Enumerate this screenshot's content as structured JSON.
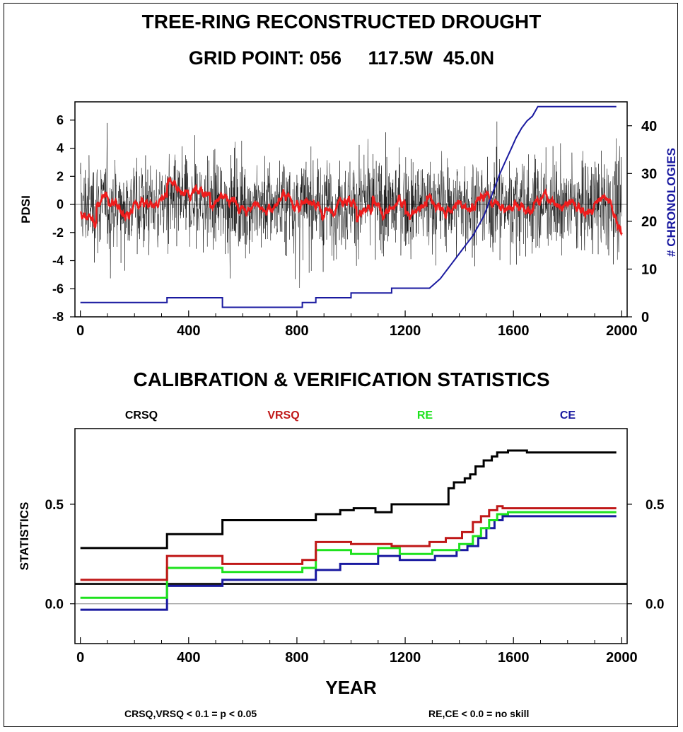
{
  "header": {
    "title": "TREE-RING RECONSTRUCTED DROUGHT",
    "subtitle": "GRID POINT: 056     117.5W  45.0N"
  },
  "stats_title": "CALIBRATION & VERIFICATION STATISTICS",
  "footnotes": {
    "left": "CRSQ,VRSQ < 0.1 = p < 0.05",
    "right": "RE,CE < 0.0 = no skill"
  },
  "chart_data": [
    {
      "type": "line",
      "ylabel": "PDSI",
      "y2label": "# CHRONOLOGIES",
      "xlim": [
        -20,
        2020
      ],
      "ylim": [
        -8,
        7.3
      ],
      "y2lim": [
        0,
        45
      ],
      "xticks": [
        0,
        400,
        800,
        1200,
        1600,
        2000
      ],
      "yticks": [
        6,
        4,
        2,
        0,
        -2,
        -4,
        -6,
        -8
      ],
      "y2ticks": [
        40,
        30,
        20,
        10,
        0
      ],
      "colors": {
        "annual": "#000000",
        "smoothed": "#ee1c1c",
        "chronologies": "#1a1aa0"
      },
      "series": [
        {
          "name": "# CHRONOLOGIES",
          "axis": "right",
          "x": [
            0,
            320,
            320,
            525,
            525,
            820,
            820,
            870,
            870,
            1000,
            1000,
            1150,
            1150,
            1290,
            1310,
            1330,
            1350,
            1370,
            1390,
            1410,
            1430,
            1450,
            1470,
            1490,
            1510,
            1530,
            1550,
            1570,
            1590,
            1610,
            1630,
            1650,
            1670,
            1690,
            1980
          ],
          "y": [
            3,
            3,
            4,
            4,
            2,
            2,
            3,
            3,
            4,
            4,
            5,
            5,
            6,
            6,
            7,
            8,
            9.5,
            11,
            12.5,
            14,
            15.5,
            17,
            19,
            21,
            24,
            27,
            30,
            32.5,
            35,
            37.5,
            39.5,
            41,
            42,
            44,
            44
          ]
        }
      ]
    },
    {
      "type": "line",
      "ylabel": "STATISTICS",
      "xlabel": "YEAR",
      "xlim": [
        -20,
        2020
      ],
      "ylim": [
        -0.2,
        0.88
      ],
      "xticks": [
        0,
        400,
        800,
        1200,
        1600,
        2000
      ],
      "yticks": [
        0.5,
        0.0
      ],
      "ytick_labels": [
        "0.5",
        "0.0"
      ],
      "reference_lines": [
        0.1
      ],
      "series": [
        {
          "name": "CRSQ",
          "color": "#000000",
          "x": [
            0,
            320,
            320,
            525,
            525,
            870,
            870,
            960,
            960,
            1010,
            1010,
            1090,
            1090,
            1150,
            1150,
            1360,
            1360,
            1380,
            1380,
            1420,
            1420,
            1440,
            1440,
            1460,
            1460,
            1490,
            1490,
            1520,
            1520,
            1540,
            1540,
            1580,
            1580,
            1650,
            1650,
            1680,
            1680,
            1980
          ],
          "y": [
            0.28,
            0.28,
            0.35,
            0.35,
            0.42,
            0.42,
            0.45,
            0.45,
            0.47,
            0.47,
            0.48,
            0.48,
            0.46,
            0.46,
            0.5,
            0.5,
            0.58,
            0.58,
            0.61,
            0.61,
            0.63,
            0.63,
            0.65,
            0.65,
            0.69,
            0.69,
            0.72,
            0.72,
            0.74,
            0.74,
            0.76,
            0.76,
            0.77,
            0.77,
            0.76,
            0.76,
            0.76,
            0.76
          ]
        },
        {
          "name": "VRSQ",
          "color": "#c01818",
          "x": [
            0,
            320,
            320,
            525,
            525,
            820,
            820,
            870,
            870,
            1000,
            1000,
            1150,
            1150,
            1290,
            1290,
            1350,
            1350,
            1410,
            1410,
            1450,
            1450,
            1480,
            1480,
            1510,
            1510,
            1540,
            1540,
            1560,
            1560,
            1980
          ],
          "y": [
            0.12,
            0.12,
            0.24,
            0.24,
            0.2,
            0.2,
            0.22,
            0.22,
            0.31,
            0.31,
            0.3,
            0.3,
            0.29,
            0.29,
            0.31,
            0.31,
            0.33,
            0.33,
            0.36,
            0.36,
            0.41,
            0.41,
            0.44,
            0.44,
            0.47,
            0.47,
            0.49,
            0.49,
            0.48,
            0.48
          ]
        },
        {
          "name": "RE",
          "color": "#1ee21e",
          "x": [
            0,
            320,
            320,
            525,
            525,
            820,
            820,
            870,
            870,
            1000,
            1000,
            1100,
            1100,
            1180,
            1180,
            1300,
            1300,
            1400,
            1400,
            1450,
            1450,
            1480,
            1480,
            1510,
            1510,
            1540,
            1540,
            1580,
            1580,
            1980
          ],
          "y": [
            0.03,
            0.03,
            0.18,
            0.18,
            0.16,
            0.16,
            0.18,
            0.18,
            0.27,
            0.27,
            0.25,
            0.25,
            0.28,
            0.28,
            0.25,
            0.25,
            0.27,
            0.27,
            0.3,
            0.3,
            0.34,
            0.34,
            0.38,
            0.38,
            0.42,
            0.42,
            0.45,
            0.45,
            0.46,
            0.46
          ]
        },
        {
          "name": "CE",
          "color": "#1a1aa0",
          "x": [
            0,
            320,
            320,
            525,
            525,
            870,
            870,
            960,
            960,
            1100,
            1100,
            1180,
            1180,
            1310,
            1310,
            1390,
            1390,
            1430,
            1430,
            1470,
            1470,
            1500,
            1500,
            1530,
            1530,
            1560,
            1560,
            1980
          ],
          "y": [
            -0.03,
            -0.03,
            0.09,
            0.09,
            0.12,
            0.12,
            0.17,
            0.17,
            0.2,
            0.2,
            0.24,
            0.24,
            0.22,
            0.22,
            0.24,
            0.24,
            0.27,
            0.27,
            0.29,
            0.29,
            0.33,
            0.33,
            0.38,
            0.38,
            0.42,
            0.42,
            0.44,
            0.44
          ]
        }
      ]
    }
  ]
}
